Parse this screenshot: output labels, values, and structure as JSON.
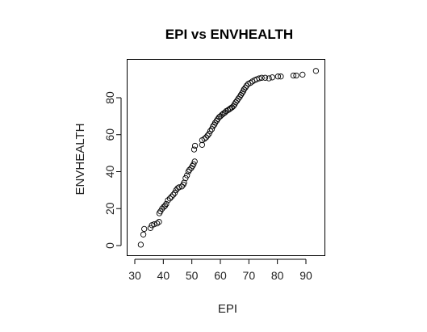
{
  "chart_data": {
    "type": "scatter",
    "title": "EPI vs ENVHEALTH",
    "xlabel": "EPI",
    "ylabel": "ENVHEALTH",
    "xlim": [
      30,
      95
    ],
    "ylim": [
      0,
      95
    ],
    "x_ticks": [
      30,
      40,
      50,
      60,
      70,
      80,
      90
    ],
    "y_ticks": [
      0,
      20,
      40,
      60,
      80
    ],
    "grid": false,
    "legend": "none",
    "point_style": "open-circle",
    "point_color": "#000000",
    "points": [
      [
        32.1,
        0.5
      ],
      [
        33.0,
        6.0
      ],
      [
        33.3,
        9.0
      ],
      [
        35.5,
        9.5
      ],
      [
        36.0,
        11.0
      ],
      [
        36.8,
        11.5
      ],
      [
        37.8,
        12.0
      ],
      [
        38.5,
        12.8
      ],
      [
        38.6,
        17.5
      ],
      [
        39.0,
        18.5
      ],
      [
        39.6,
        20.0
      ],
      [
        40.2,
        21.0
      ],
      [
        40.6,
        21.5
      ],
      [
        41.0,
        22.5
      ],
      [
        41.6,
        24.5
      ],
      [
        42.3,
        25.5
      ],
      [
        42.9,
        26.5
      ],
      [
        43.5,
        27.5
      ],
      [
        44.0,
        28.5
      ],
      [
        44.5,
        30.0
      ],
      [
        45.0,
        31.0
      ],
      [
        45.5,
        31.5
      ],
      [
        46.5,
        32.0
      ],
      [
        47.0,
        33.0
      ],
      [
        47.3,
        34.0
      ],
      [
        47.8,
        36.5
      ],
      [
        48.3,
        38.0
      ],
      [
        48.8,
        40.0
      ],
      [
        49.2,
        41.0
      ],
      [
        49.8,
        42.0
      ],
      [
        50.2,
        43.0
      ],
      [
        50.6,
        44.0
      ],
      [
        51.0,
        45.5
      ],
      [
        50.8,
        52.0
      ],
      [
        51.1,
        54.0
      ],
      [
        53.6,
        54.5
      ],
      [
        53.6,
        57.0
      ],
      [
        54.4,
        57.8
      ],
      [
        55.0,
        58.5
      ],
      [
        55.5,
        59.5
      ],
      [
        56.0,
        60.5
      ],
      [
        56.5,
        62.0
      ],
      [
        57.0,
        63.0
      ],
      [
        57.4,
        64.5
      ],
      [
        57.9,
        65.5
      ],
      [
        58.2,
        66.5
      ],
      [
        58.7,
        67.5
      ],
      [
        59.1,
        68.5
      ],
      [
        59.6,
        69.5
      ],
      [
        60.0,
        70.0
      ],
      [
        60.6,
        70.8
      ],
      [
        61.1,
        71.5
      ],
      [
        61.6,
        72.0
      ],
      [
        62.1,
        72.8
      ],
      [
        62.7,
        73.3
      ],
      [
        63.2,
        73.8
      ],
      [
        63.6,
        74.3
      ],
      [
        64.1,
        74.8
      ],
      [
        64.6,
        75.5
      ],
      [
        65.0,
        76.5
      ],
      [
        65.4,
        77.5
      ],
      [
        65.9,
        78.5
      ],
      [
        66.3,
        79.5
      ],
      [
        66.8,
        80.5
      ],
      [
        67.2,
        81.5
      ],
      [
        67.6,
        82.5
      ],
      [
        68.0,
        83.5
      ],
      [
        68.3,
        84.5
      ],
      [
        68.8,
        85.5
      ],
      [
        69.2,
        86.5
      ],
      [
        69.8,
        87.5
      ],
      [
        70.5,
        88.0
      ],
      [
        71.2,
        88.8
      ],
      [
        72.0,
        89.5
      ],
      [
        72.8,
        90.0
      ],
      [
        73.6,
        90.5
      ],
      [
        74.5,
        90.8
      ],
      [
        75.7,
        90.8
      ],
      [
        77.0,
        90.5
      ],
      [
        78.2,
        91.0
      ],
      [
        80.2,
        91.5
      ],
      [
        81.2,
        91.5
      ],
      [
        85.6,
        92.0
      ],
      [
        86.6,
        92.0
      ],
      [
        88.8,
        92.5
      ],
      [
        93.5,
        94.5
      ]
    ]
  }
}
